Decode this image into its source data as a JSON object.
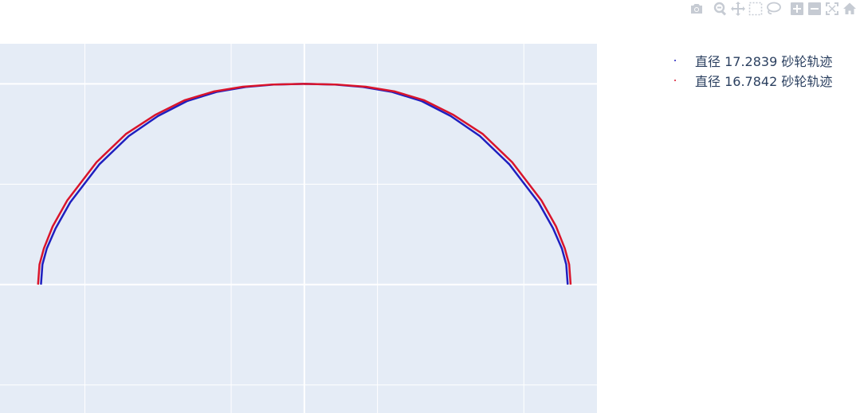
{
  "chart_data": {
    "type": "line",
    "series": [
      {
        "name": "直径 17.2839 砂轮轨迹",
        "color": "#1f1fbf",
        "x": [
          -0.9,
          -0.895,
          -0.88,
          -0.85,
          -0.8,
          -0.7,
          -0.6,
          -0.5,
          -0.4,
          -0.3,
          -0.2,
          -0.1,
          0,
          0.1,
          0.2,
          0.3,
          0.4,
          0.5,
          0.6,
          0.7,
          0.8,
          0.85,
          0.88,
          0.895,
          0.9
        ],
        "y": [
          0,
          0.1,
          0.18,
          0.28,
          0.41,
          0.6,
          0.74,
          0.84,
          0.915,
          0.96,
          0.985,
          0.997,
          1.0,
          0.997,
          0.985,
          0.96,
          0.915,
          0.84,
          0.74,
          0.6,
          0.41,
          0.28,
          0.18,
          0.1,
          0
        ]
      },
      {
        "name": "直径 16.7842 砂轮轨迹",
        "color": "#d9142b",
        "x": [
          -0.91,
          -0.905,
          -0.89,
          -0.86,
          -0.81,
          -0.71,
          -0.61,
          -0.51,
          -0.41,
          -0.31,
          -0.21,
          -0.11,
          0,
          0.11,
          0.21,
          0.31,
          0.41,
          0.51,
          0.61,
          0.71,
          0.81,
          0.86,
          0.89,
          0.905,
          0.91
        ],
        "y": [
          0,
          0.1,
          0.18,
          0.29,
          0.42,
          0.61,
          0.75,
          0.845,
          0.918,
          0.962,
          0.986,
          0.997,
          1.0,
          0.997,
          0.986,
          0.962,
          0.918,
          0.845,
          0.75,
          0.61,
          0.42,
          0.29,
          0.18,
          0.1,
          0
        ]
      }
    ],
    "xlim": [
      -1.04,
      1.0
    ],
    "ylim": [
      -0.64,
      1.2
    ],
    "grid": true,
    "legend_position": "top-right"
  },
  "modebar": {
    "icons": [
      "camera-icon",
      "zoom-icon",
      "pan-icon",
      "box-select-icon",
      "lasso-icon",
      "zoom-in-icon",
      "zoom-out-icon",
      "autoscale-icon",
      "home-icon"
    ]
  }
}
